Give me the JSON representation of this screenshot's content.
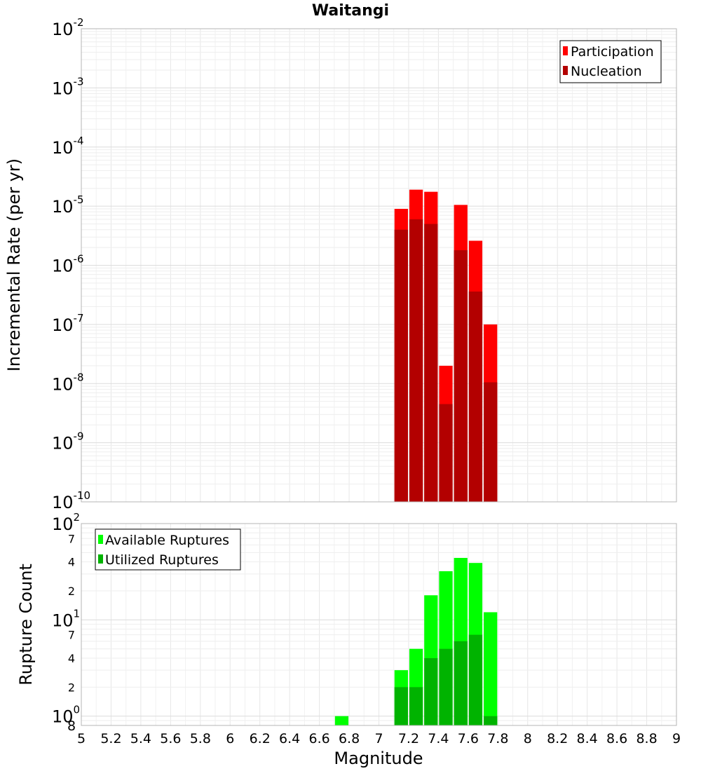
{
  "chart_data": [
    {
      "type": "bar",
      "panel": "top",
      "title": "Waitangi",
      "ylabel": "Incremental Rate (per yr)",
      "xlabel": "Magnitude",
      "yscale": "log",
      "ylim": [
        1e-10,
        0.01
      ],
      "xlim": [
        5,
        9
      ],
      "bar_width": 0.1,
      "y_ticks": [
        {
          "base": "10",
          "exp": "-10",
          "value": 1e-10
        },
        {
          "base": "10",
          "exp": "-9",
          "value": 1e-09
        },
        {
          "base": "10",
          "exp": "-8",
          "value": 1e-08
        },
        {
          "base": "10",
          "exp": "-7",
          "value": 1e-07
        },
        {
          "base": "10",
          "exp": "-6",
          "value": 1e-06
        },
        {
          "base": "10",
          "exp": "-5",
          "value": 1e-05
        },
        {
          "base": "10",
          "exp": "-4",
          "value": 0.0001
        },
        {
          "base": "10",
          "exp": "-3",
          "value": 0.001
        },
        {
          "base": "10",
          "exp": "-2",
          "value": 0.01
        }
      ],
      "x": [
        7.15,
        7.25,
        7.35,
        7.45,
        7.55,
        7.65,
        7.75
      ],
      "series": [
        {
          "name": "Participation",
          "color": "#ff0000",
          "values": [
            9e-06,
            1.9e-05,
            1.75e-05,
            2e-08,
            1.05e-05,
            2.6e-06,
            1e-07
          ]
        },
        {
          "name": "Nucleation",
          "color": "#b30000",
          "values": [
            4e-06,
            6e-06,
            5e-06,
            4.5e-09,
            1.8e-06,
            3.6e-07,
            1.05e-08
          ]
        }
      ],
      "legend": {
        "position": "top-right",
        "entries": [
          "Participation",
          "Nucleation"
        ]
      }
    },
    {
      "type": "bar",
      "panel": "bottom",
      "ylabel": "Rupture Count",
      "xlabel": "Magnitude",
      "yscale": "log",
      "ylim": [
        0.8,
        100
      ],
      "xlim": [
        5,
        9
      ],
      "bar_width": 0.1,
      "y_major_ticks": [
        {
          "base": "10",
          "exp": "0",
          "value": 1
        },
        {
          "base": "10",
          "exp": "1",
          "value": 10
        },
        {
          "base": "10",
          "exp": "2",
          "value": 100
        }
      ],
      "y_minor_ticks": [
        {
          "label": "8",
          "value": 0.8
        },
        {
          "label": "2",
          "value": 2
        },
        {
          "label": "4",
          "value": 4
        },
        {
          "label": "7",
          "value": 7
        },
        {
          "label": "2",
          "value": 20
        },
        {
          "label": "4",
          "value": 40
        },
        {
          "label": "7",
          "value": 70
        }
      ],
      "x_ticks": [
        "5",
        "5.2",
        "5.4",
        "5.6",
        "5.8",
        "6",
        "6.2",
        "6.4",
        "6.6",
        "6.8",
        "7",
        "7.2",
        "7.4",
        "7.6",
        "7.8",
        "8",
        "8.2",
        "8.4",
        "8.6",
        "8.8",
        "9"
      ],
      "x": [
        6.75,
        7.15,
        7.25,
        7.35,
        7.45,
        7.55,
        7.65,
        7.75
      ],
      "series": [
        {
          "name": "Available Ruptures",
          "color": "#00ff00",
          "values": [
            1,
            3,
            5,
            18,
            32,
            44,
            39,
            12
          ]
        },
        {
          "name": "Utilized Ruptures",
          "color": "#00b300",
          "values": [
            0,
            2,
            2,
            4,
            5,
            6,
            7,
            1
          ]
        }
      ],
      "legend": {
        "position": "top-left",
        "entries": [
          "Available Ruptures",
          "Utilized Ruptures"
        ]
      }
    }
  ]
}
